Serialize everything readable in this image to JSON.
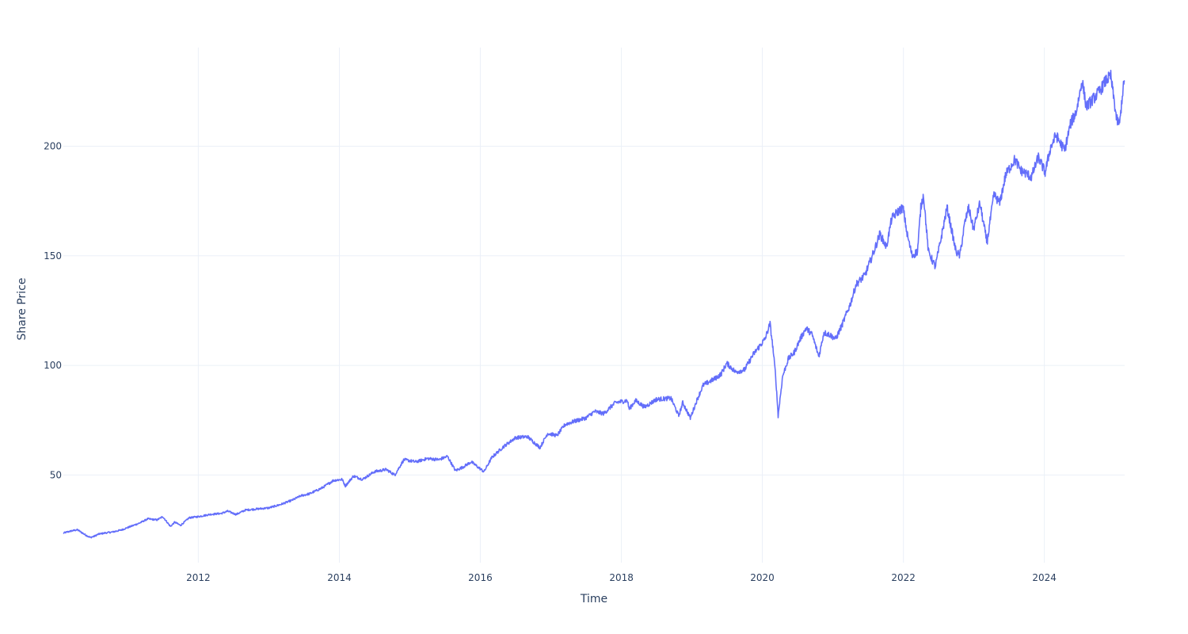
{
  "chart_data": {
    "type": "line",
    "title": "",
    "xlabel": "Time",
    "ylabel": "Share Price",
    "xlim": [
      "2010-02-01",
      "2025-02-20"
    ],
    "ylim": [
      10,
      245
    ],
    "x_ticks": [
      "2012",
      "2014",
      "2016",
      "2018",
      "2020",
      "2022",
      "2024"
    ],
    "y_ticks": [
      50,
      100,
      150,
      200
    ],
    "grid": true,
    "legend": "none",
    "series": [
      {
        "color": "#636efa",
        "points": [
          [
            "2010-02-01",
            23.5
          ],
          [
            "2010-03-15",
            24.5
          ],
          [
            "2010-04-15",
            25.0
          ],
          [
            "2010-05-20",
            23.0
          ],
          [
            "2010-06-20",
            21.5
          ],
          [
            "2010-07-10",
            22.0
          ],
          [
            "2010-08-01",
            23.0
          ],
          [
            "2010-09-01",
            23.5
          ],
          [
            "2010-10-15",
            24.0
          ],
          [
            "2010-12-01",
            25.0
          ],
          [
            "2011-01-15",
            26.5
          ],
          [
            "2011-03-01",
            28.0
          ],
          [
            "2011-04-15",
            30.0
          ],
          [
            "2011-06-01",
            29.5
          ],
          [
            "2011-07-01",
            31.0
          ],
          [
            "2011-08-10",
            26.5
          ],
          [
            "2011-09-01",
            28.5
          ],
          [
            "2011-10-01",
            27.0
          ],
          [
            "2011-11-15",
            30.5
          ],
          [
            "2012-01-01",
            31.0
          ],
          [
            "2012-03-01",
            32.0
          ],
          [
            "2012-05-01",
            32.5
          ],
          [
            "2012-06-01",
            33.5
          ],
          [
            "2012-07-15",
            32.0
          ],
          [
            "2012-09-01",
            34.0
          ],
          [
            "2012-11-01",
            34.5
          ],
          [
            "2013-01-01",
            35.0
          ],
          [
            "2013-03-01",
            36.5
          ],
          [
            "2013-05-01",
            38.5
          ],
          [
            "2013-06-15",
            40.5
          ],
          [
            "2013-08-01",
            41.5
          ],
          [
            "2013-10-01",
            44.0
          ],
          [
            "2013-12-01",
            47.5
          ],
          [
            "2014-01-15",
            48.0
          ],
          [
            "2014-02-01",
            45.0
          ],
          [
            "2014-03-15",
            49.5
          ],
          [
            "2014-05-01",
            48.0
          ],
          [
            "2014-07-01",
            51.5
          ],
          [
            "2014-09-01",
            52.5
          ],
          [
            "2014-10-15",
            50.0
          ],
          [
            "2014-12-01",
            57.0
          ],
          [
            "2015-02-01",
            56.0
          ],
          [
            "2015-04-01",
            57.5
          ],
          [
            "2015-06-01",
            57.0
          ],
          [
            "2015-07-15",
            58.5
          ],
          [
            "2015-08-25",
            52.0
          ],
          [
            "2015-10-01",
            53.5
          ],
          [
            "2015-11-15",
            56.0
          ],
          [
            "2016-01-20",
            51.5
          ],
          [
            "2016-03-01",
            58.0
          ],
          [
            "2016-05-01",
            63.0
          ],
          [
            "2016-07-01",
            67.0
          ],
          [
            "2016-09-01",
            67.5
          ],
          [
            "2016-11-05",
            62.5
          ],
          [
            "2016-12-15",
            69.0
          ],
          [
            "2017-02-01",
            68.0
          ],
          [
            "2017-03-15",
            73.0
          ],
          [
            "2017-05-01",
            74.5
          ],
          [
            "2017-07-01",
            76.0
          ],
          [
            "2017-08-15",
            79.0
          ],
          [
            "2017-10-01",
            78.0
          ],
          [
            "2017-12-01",
            83.0
          ],
          [
            "2018-02-01",
            84.0
          ],
          [
            "2018-02-10",
            80.0
          ],
          [
            "2018-03-15",
            84.0
          ],
          [
            "2018-05-01",
            81.0
          ],
          [
            "2018-07-01",
            84.5
          ],
          [
            "2018-09-15",
            85.0
          ],
          [
            "2018-10-25",
            77.0
          ],
          [
            "2018-11-15",
            83.0
          ],
          [
            "2018-12-24",
            76.0
          ],
          [
            "2019-01-31",
            85.0
          ],
          [
            "2019-03-01",
            91.0
          ],
          [
            "2019-05-01",
            94.0
          ],
          [
            "2019-06-01",
            96.0
          ],
          [
            "2019-07-01",
            101.0
          ],
          [
            "2019-08-15",
            97.0
          ],
          [
            "2019-10-01",
            98.0
          ],
          [
            "2019-11-15",
            105.0
          ],
          [
            "2020-01-15",
            112.0
          ],
          [
            "2020-02-10",
            119.0
          ],
          [
            "2020-02-25",
            108.0
          ],
          [
            "2020-03-10",
            95.0
          ],
          [
            "2020-03-23",
            77.0
          ],
          [
            "2020-04-15",
            95.0
          ],
          [
            "2020-05-15",
            103.0
          ],
          [
            "2020-06-15",
            106.0
          ],
          [
            "2020-07-15",
            112.0
          ],
          [
            "2020-08-15",
            117.0
          ],
          [
            "2020-09-15",
            114.0
          ],
          [
            "2020-10-20",
            104.0
          ],
          [
            "2020-11-15",
            115.0
          ],
          [
            "2020-12-15",
            114.0
          ],
          [
            "2021-01-15",
            112.0
          ],
          [
            "2021-02-15",
            118.0
          ],
          [
            "2021-04-01",
            128.0
          ],
          [
            "2021-05-01",
            137.0
          ],
          [
            "2021-06-15",
            141.0
          ],
          [
            "2021-08-01",
            152.0
          ],
          [
            "2021-09-01",
            160.0
          ],
          [
            "2021-10-05",
            154.0
          ],
          [
            "2021-11-01",
            167.0
          ],
          [
            "2021-12-01",
            170.0
          ],
          [
            "2021-12-30",
            172.0
          ],
          [
            "2022-01-20",
            160.0
          ],
          [
            "2022-02-15",
            150.0
          ],
          [
            "2022-03-15",
            152.0
          ],
          [
            "2022-04-01",
            172.0
          ],
          [
            "2022-04-15",
            178.0
          ],
          [
            "2022-05-10",
            152.0
          ],
          [
            "2022-06-15",
            145.0
          ],
          [
            "2022-07-15",
            158.0
          ],
          [
            "2022-08-15",
            172.0
          ],
          [
            "2022-09-30",
            152.0
          ],
          [
            "2022-10-20",
            150.0
          ],
          [
            "2022-11-15",
            165.0
          ],
          [
            "2022-12-05",
            172.0
          ],
          [
            "2022-12-30",
            162.0
          ],
          [
            "2023-02-01",
            174.0
          ],
          [
            "2023-03-10",
            156.0
          ],
          [
            "2023-04-15",
            178.0
          ],
          [
            "2023-05-15",
            174.0
          ],
          [
            "2023-06-15",
            187.0
          ],
          [
            "2023-08-01",
            194.0
          ],
          [
            "2023-09-01",
            189.0
          ],
          [
            "2023-10-26",
            186.0
          ],
          [
            "2023-12-01",
            195.0
          ],
          [
            "2024-01-05",
            188.0
          ],
          [
            "2024-02-01",
            199.0
          ],
          [
            "2024-03-01",
            205.0
          ],
          [
            "2024-04-15",
            198.0
          ],
          [
            "2024-05-15",
            210.0
          ],
          [
            "2024-06-15",
            216.0
          ],
          [
            "2024-07-15",
            230.0
          ],
          [
            "2024-08-05",
            218.0
          ],
          [
            "2024-09-15",
            222.0
          ],
          [
            "2024-10-20",
            226.0
          ],
          [
            "2024-11-15",
            230.0
          ],
          [
            "2024-12-10",
            232.0
          ],
          [
            "2025-01-10",
            212.0
          ],
          [
            "2025-01-25",
            210.0
          ],
          [
            "2025-02-10",
            225.0
          ],
          [
            "2025-02-20",
            230.0
          ]
        ]
      }
    ]
  }
}
